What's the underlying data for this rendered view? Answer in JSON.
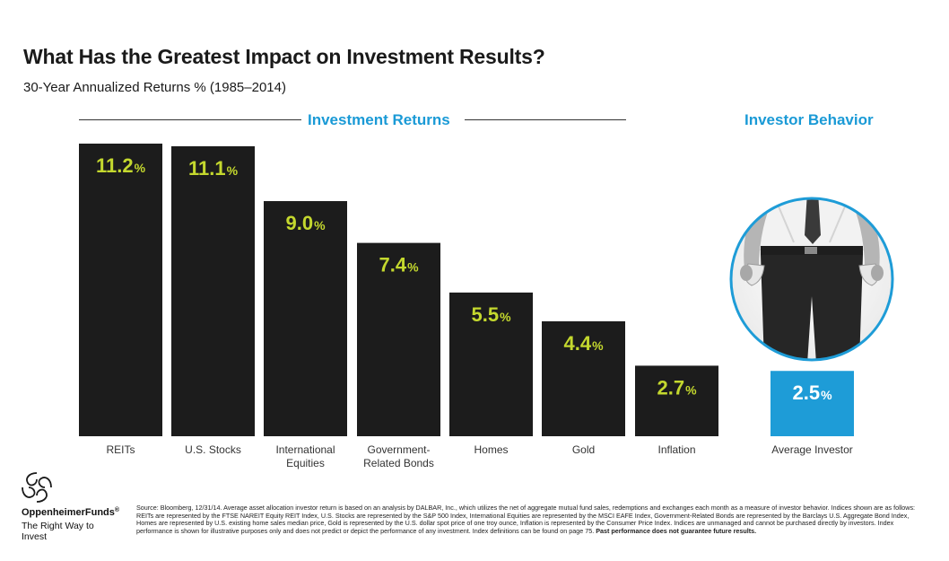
{
  "title": "What Has the Greatest Impact on Investment Results?",
  "subtitle": "30-Year Annualized Returns % (1985–2014)",
  "sections": {
    "returns_label": "Investment Returns",
    "behavior_label": "Investor Behavior"
  },
  "colors": {
    "bar": "#1c1c1c",
    "investor_bar": "#1e9cd7",
    "value_green": "#c4d82e",
    "value_white": "#ffffff",
    "accent": "#1a9ad6"
  },
  "chart_data": {
    "type": "bar",
    "title": "30-Year Annualized Returns % (1985–2014)",
    "xlabel": "",
    "ylabel": "",
    "ylim": [
      0,
      11.2
    ],
    "value_suffix": "%",
    "categories": [
      "REITs",
      "U.S. Stocks",
      "International Equities",
      "Government-Related Bonds",
      "Homes",
      "Gold",
      "Inflation",
      "Average Investor"
    ],
    "category_lines": [
      [
        "REITs"
      ],
      [
        "U.S. Stocks"
      ],
      [
        "International",
        "Equities"
      ],
      [
        "Government-",
        "Related Bonds"
      ],
      [
        "Homes"
      ],
      [
        "Gold"
      ],
      [
        "Inflation"
      ],
      [
        "Average Investor"
      ]
    ],
    "values": [
      11.2,
      11.1,
      9.0,
      7.4,
      5.5,
      4.4,
      2.7,
      2.5
    ],
    "value_labels": [
      "11.2",
      "11.1",
      "9.0",
      "7.4",
      "5.5",
      "4.4",
      "2.7",
      "2.5"
    ],
    "groups": [
      "Investment Returns",
      "Investment Returns",
      "Investment Returns",
      "Investment Returns",
      "Investment Returns",
      "Investment Returns",
      "Investment Returns",
      "Investor Behavior"
    ]
  },
  "brand": {
    "name": "OppenheimerFunds",
    "registered": "®",
    "tagline": "The Right Way to Invest"
  },
  "footnote": {
    "text": "Source: Bloomberg, 12/31/14. Average asset allocation investor return is based on an analysis by DALBAR, Inc., which utilizes the net of aggregate mutual fund sales, redemptions and exchanges each month as a measure of investor behavior. Indices shown are as follows: REITs are represented by the FTSE NAREIT Equity REIT Index, U.S. Stocks are represented by the S&P 500 Index, International Equities are represented by the MSCI EAFE Index, Government-Related Bonds are represented by the Barclays U.S. Aggregate Bond Index, Homes are represented by U.S. existing home sales median price, Gold is represented by the U.S. dollar spot price of one troy ounce, Inflation is represented by the Consumer Price Index. Indices are unmanaged and cannot be purchased directly by investors. Index performance is shown for illustrative purposes only and does not predict or depict the performance of any investment. Index definitions can be found on page 75.",
    "bold": "Past performance does not guarantee future results."
  }
}
